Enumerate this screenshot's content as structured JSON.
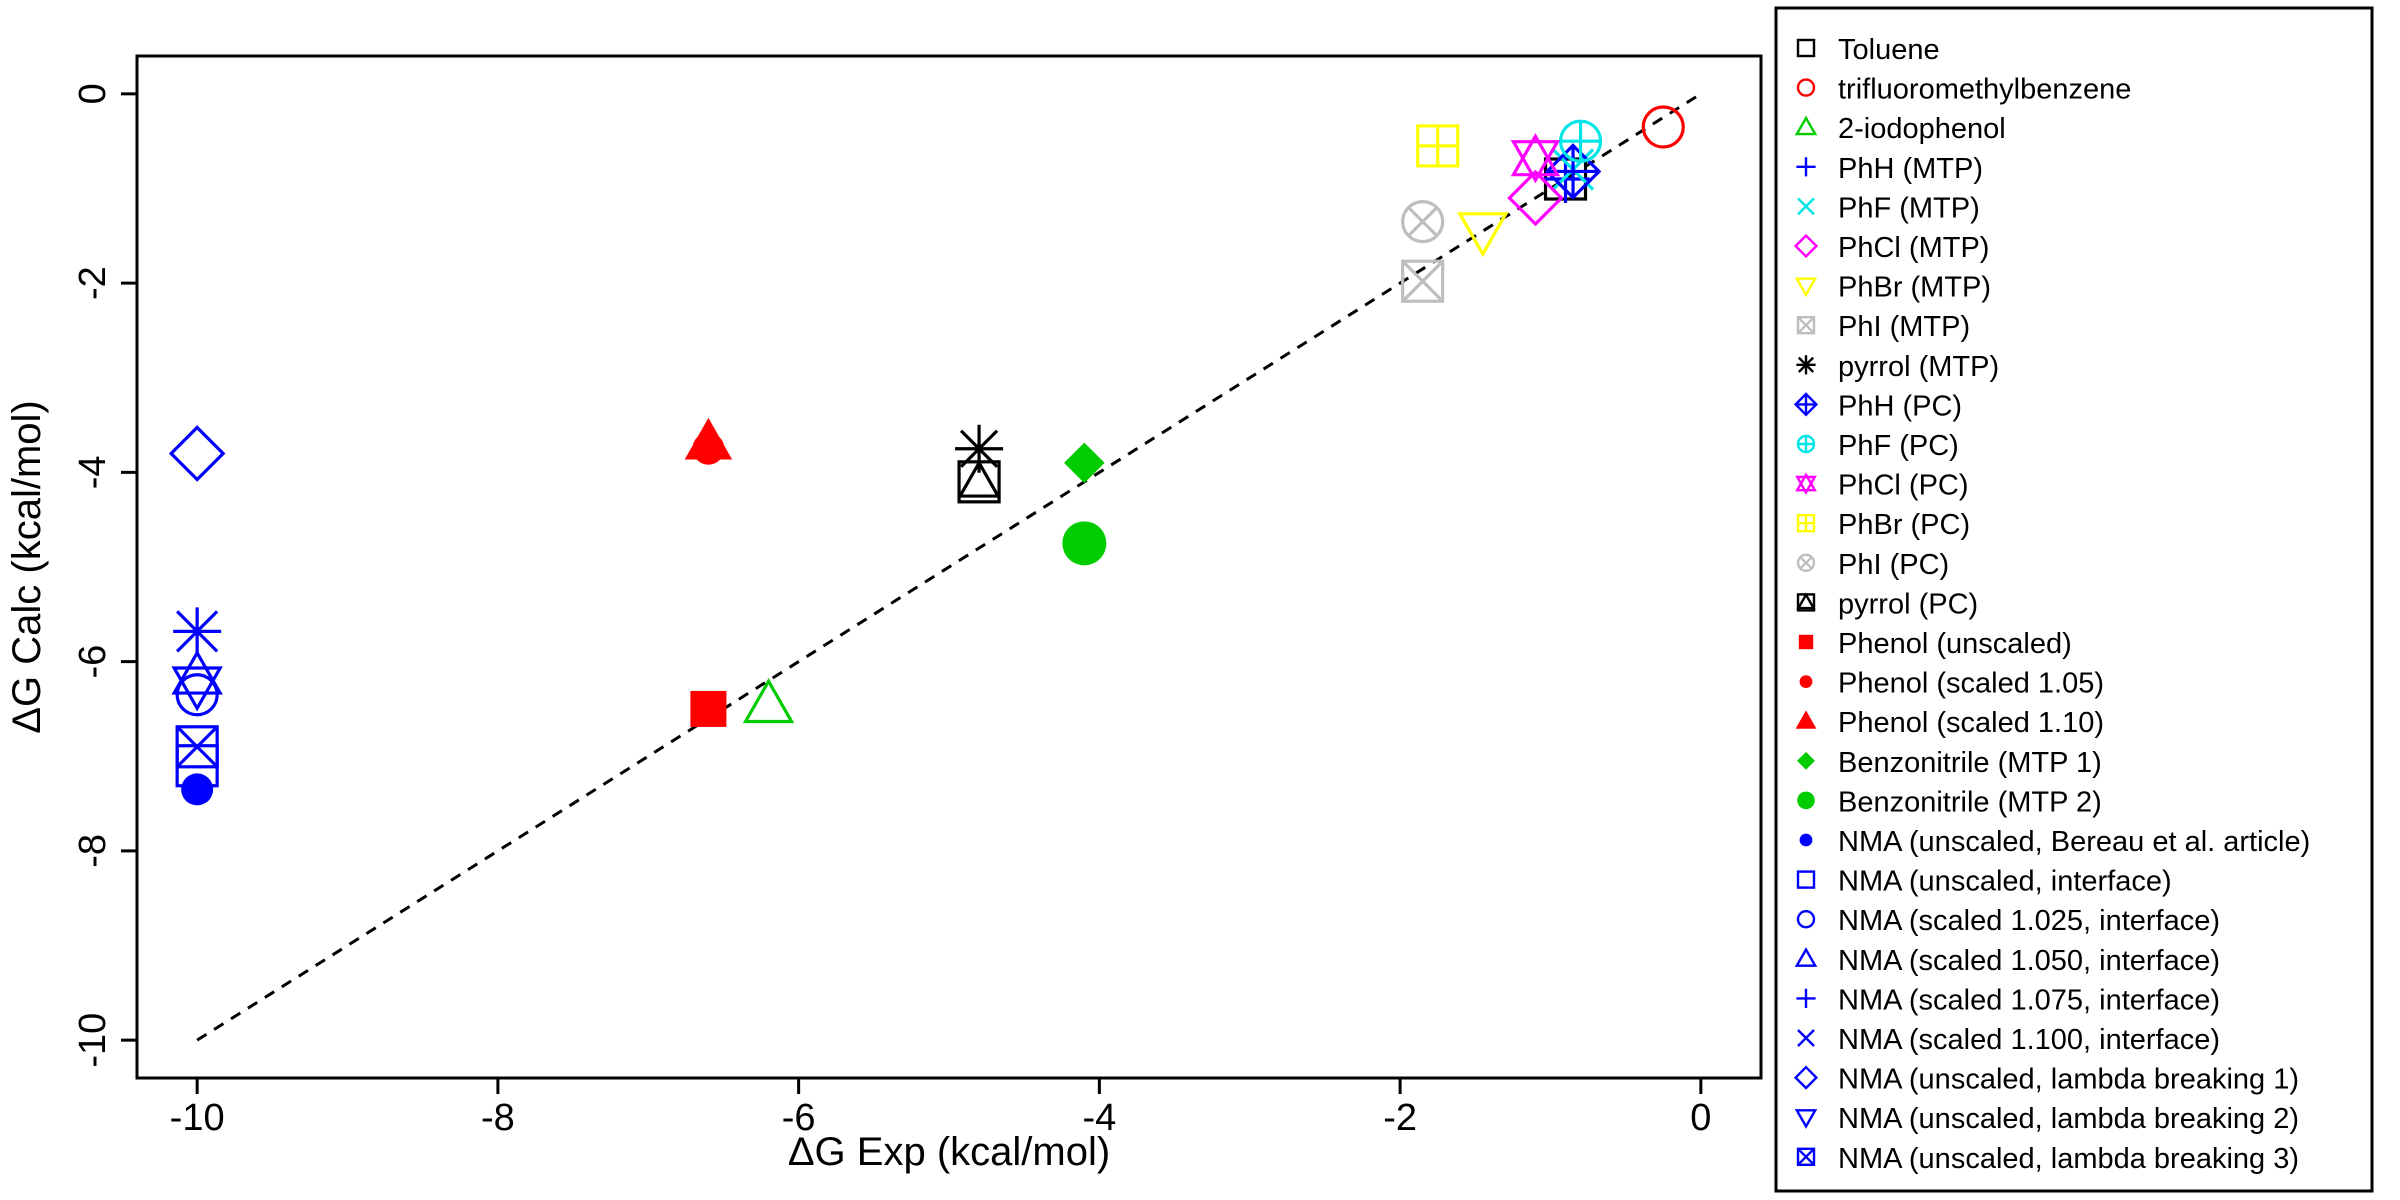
{
  "chart_data": {
    "type": "scatter",
    "title": "",
    "xlabel": "ΔG Exp (kcal/mol)",
    "ylabel": "ΔG Calc (kcal/mol)",
    "xlim": [
      -10.4,
      0.4
    ],
    "ylim": [
      -10.4,
      0.4
    ],
    "x_ticks": [
      -10,
      -8,
      -6,
      -4,
      -2,
      0
    ],
    "y_ticks": [
      -10,
      -8,
      -6,
      -4,
      -2,
      0
    ],
    "grid": false,
    "legend_position": "right-outside",
    "reference_line": {
      "style": "dashed",
      "color": "#000000",
      "x": [
        -10,
        0
      ],
      "y": [
        -10,
        0
      ]
    },
    "series": [
      {
        "name": "Toluene",
        "marker": "square-open",
        "color": "#000000",
        "points": [
          [
            -0.9,
            -0.9
          ]
        ]
      },
      {
        "name": "trifluoromethylbenzene",
        "marker": "circle-open",
        "color": "#ff0000",
        "points": [
          [
            -0.25,
            -0.35
          ]
        ]
      },
      {
        "name": "2-iodophenol",
        "marker": "triangle-open",
        "color": "#00cc00",
        "points": [
          [
            -6.2,
            -6.45
          ]
        ]
      },
      {
        "name": "PhH (MTP)",
        "marker": "plus",
        "color": "#0000ff",
        "points": [
          [
            -0.9,
            -0.9
          ]
        ]
      },
      {
        "name": "PhF (MTP)",
        "marker": "cross",
        "color": "#00e5e5",
        "points": [
          [
            -0.85,
            -0.8
          ]
        ]
      },
      {
        "name": "PhCl (MTP)",
        "marker": "diamond-open",
        "color": "#ff00ff",
        "points": [
          [
            -1.1,
            -1.1
          ]
        ]
      },
      {
        "name": "PhBr (MTP)",
        "marker": "triangle-down-open",
        "color": "#ffff00",
        "points": [
          [
            -1.45,
            -1.45
          ]
        ]
      },
      {
        "name": "PhI (MTP)",
        "marker": "square-cross",
        "color": "#bebebe",
        "points": [
          [
            -1.85,
            -1.98
          ]
        ]
      },
      {
        "name": "pyrrol (MTP)",
        "marker": "asterisk",
        "color": "#000000",
        "points": [
          [
            -4.8,
            -3.75
          ]
        ]
      },
      {
        "name": "PhH (PC)",
        "marker": "diamond-plus",
        "color": "#0000ff",
        "points": [
          [
            -0.85,
            -0.82
          ]
        ]
      },
      {
        "name": "PhF (PC)",
        "marker": "circle-plus",
        "color": "#00e5e5",
        "points": [
          [
            -0.8,
            -0.5
          ]
        ]
      },
      {
        "name": "PhCl (PC)",
        "marker": "star-of-david",
        "color": "#ff00ff",
        "points": [
          [
            -1.1,
            -0.68
          ]
        ]
      },
      {
        "name": "PhBr (PC)",
        "marker": "square-plus",
        "color": "#ffff00",
        "points": [
          [
            -1.75,
            -0.55
          ]
        ]
      },
      {
        "name": "PhI (PC)",
        "marker": "circle-cross",
        "color": "#bebebe",
        "points": [
          [
            -1.85,
            -1.35
          ]
        ]
      },
      {
        "name": "pyrrol (PC)",
        "marker": "square-triangle",
        "color": "#000000",
        "points": [
          [
            -4.8,
            -4.1
          ]
        ]
      },
      {
        "name": "Phenol (unscaled)",
        "marker": "square-filled",
        "color": "#ff0000",
        "points": [
          [
            -6.6,
            -6.5
          ]
        ]
      },
      {
        "name": "Phenol (scaled 1.05)",
        "marker": "circle-filled",
        "color": "#ff0000",
        "points": [
          [
            -6.6,
            -3.75
          ]
        ]
      },
      {
        "name": "Phenol (scaled 1.10)",
        "marker": "triangle-filled",
        "color": "#ff0000",
        "points": [
          [
            -6.6,
            -3.68
          ]
        ]
      },
      {
        "name": "Benzonitrile (MTP 1)",
        "marker": "diamond-filled",
        "color": "#00cc00",
        "points": [
          [
            -4.1,
            -3.9
          ]
        ]
      },
      {
        "name": "Benzonitrile (MTP 2)",
        "marker": "circle-filled-large",
        "color": "#00cc00",
        "points": [
          [
            -4.1,
            -4.75
          ]
        ]
      },
      {
        "name": "NMA (unscaled, Bereau et al. article)",
        "marker": "circle-filled",
        "color": "#0000ff",
        "points": [
          [
            -10,
            -7.35
          ]
        ]
      },
      {
        "name": "NMA (unscaled, interface)",
        "marker": "square-open",
        "color": "#0000ff",
        "points": [
          [
            -10,
            -7.1
          ]
        ]
      },
      {
        "name": "NMA (scaled 1.025, interface)",
        "marker": "circle-open",
        "color": "#0000ff",
        "points": [
          [
            -10,
            -6.35
          ]
        ]
      },
      {
        "name": "NMA (scaled 1.050, interface)",
        "marker": "triangle-open",
        "color": "#0000ff",
        "points": [
          [
            -10,
            -6.15
          ]
        ]
      },
      {
        "name": "NMA (scaled 1.075, interface)",
        "marker": "plus",
        "color": "#0000ff",
        "points": [
          [
            -10,
            -5.68
          ]
        ]
      },
      {
        "name": "NMA (scaled 1.100, interface)",
        "marker": "cross",
        "color": "#0000ff",
        "points": [
          [
            -10,
            -5.68
          ]
        ]
      },
      {
        "name": "NMA (unscaled, lambda breaking 1)",
        "marker": "diamond-open",
        "color": "#0000ff",
        "points": [
          [
            -10,
            -3.8
          ]
        ]
      },
      {
        "name": "NMA (unscaled, lambda breaking 2)",
        "marker": "triangle-down-open",
        "color": "#0000ff",
        "points": [
          [
            -10,
            -6.25
          ]
        ]
      },
      {
        "name": "NMA (unscaled, lambda breaking 3)",
        "marker": "square-cross",
        "color": "#0000ff",
        "points": [
          [
            -10,
            -6.9
          ]
        ]
      }
    ]
  }
}
